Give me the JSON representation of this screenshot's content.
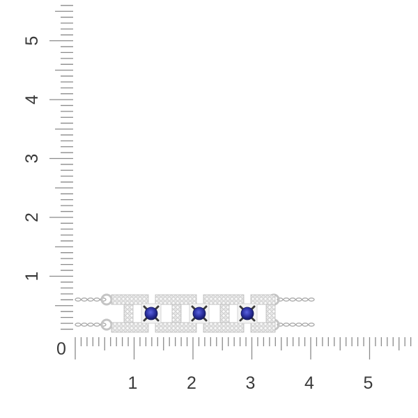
{
  "ruler": {
    "unit_labels_x": [
      "0",
      "1",
      "2",
      "3",
      "4",
      "5"
    ],
    "unit_labels_y": [
      "1",
      "2",
      "3",
      "4",
      "5"
    ],
    "tick_color": "#8a8a8a",
    "label_color": "#3a3a3a"
  },
  "product": {
    "stone_count": 3,
    "stone_color": "#2a2f9e",
    "metal_color": "#d9d9d9",
    "prong_color": "#3b3b3b"
  }
}
